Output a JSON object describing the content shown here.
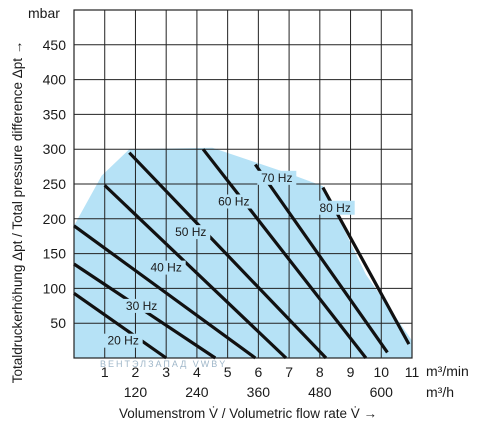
{
  "chart_data": {
    "type": "line",
    "title": "",
    "y_unit": "mbar",
    "ylabel": "Totaldruckerhöhung Δpt / Total pressure difference Δpt →",
    "xlabel": "Volumenstrom V̇ / Volumetric flow rate V̇ →",
    "x_unit_primary": "m³/min",
    "x_unit_secondary": "m³/h",
    "xlim": [
      0,
      11
    ],
    "ylim": [
      0,
      500
    ],
    "x_ticks": [
      1,
      2,
      3,
      4,
      5,
      6,
      7,
      8,
      9,
      10,
      11
    ],
    "x_ticks_secondary": [
      {
        "at": 2,
        "label": "120"
      },
      {
        "at": 4,
        "label": "240"
      },
      {
        "at": 6,
        "label": "360"
      },
      {
        "at": 8,
        "label": "480"
      },
      {
        "at": 10,
        "label": "600"
      }
    ],
    "y_ticks": [
      50,
      100,
      150,
      200,
      250,
      300,
      350,
      400,
      450
    ],
    "grid": true,
    "operating_region": [
      [
        0,
        0
      ],
      [
        0,
        190
      ],
      [
        0.9,
        262
      ],
      [
        1.8,
        300
      ],
      [
        4.5,
        302
      ],
      [
        7.0,
        265
      ],
      [
        8.1,
        247
      ],
      [
        9.5,
        120
      ],
      [
        11,
        25
      ],
      [
        11,
        0
      ]
    ],
    "series": [
      {
        "name": "20 Hz",
        "points": [
          [
            0,
            93
          ],
          [
            3.0,
            0
          ]
        ]
      },
      {
        "name": "30 Hz",
        "points": [
          [
            0,
            135
          ],
          [
            4.6,
            0
          ]
        ]
      },
      {
        "name": "40 Hz",
        "points": [
          [
            0,
            190
          ],
          [
            5.9,
            0
          ]
        ]
      },
      {
        "name": "",
        "points": [
          [
            1.0,
            248
          ],
          [
            6.9,
            0
          ]
        ]
      },
      {
        "name": "50 Hz",
        "points": [
          [
            1.8,
            295
          ],
          [
            8.2,
            0
          ]
        ]
      },
      {
        "name": "60 Hz",
        "points": [
          [
            4.2,
            300
          ],
          [
            9.5,
            0
          ]
        ]
      },
      {
        "name": "70 Hz",
        "points": [
          [
            5.9,
            278
          ],
          [
            10.2,
            8
          ]
        ]
      },
      {
        "name": "80 Hz",
        "points": [
          [
            8.1,
            245
          ],
          [
            10.9,
            20
          ]
        ]
      }
    ],
    "series_label_positions": [
      {
        "name": "20 Hz",
        "x": 1.6,
        "y": 22
      },
      {
        "name": "30 Hz",
        "x": 2.2,
        "y": 72
      },
      {
        "name": "40 Hz",
        "x": 3.0,
        "y": 127
      },
      {
        "name": "50 Hz",
        "x": 3.8,
        "y": 178
      },
      {
        "name": "60 Hz",
        "x": 5.2,
        "y": 222
      },
      {
        "name": "70 Hz",
        "x": 6.6,
        "y": 256
      },
      {
        "name": "80 Hz",
        "x": 8.5,
        "y": 213
      }
    ],
    "watermark": "ВЕНТЭЛЗАПАД  VWBY",
    "region_color": "#b6e2f6",
    "line_color": "#111111",
    "grid_color": "#222222"
  }
}
